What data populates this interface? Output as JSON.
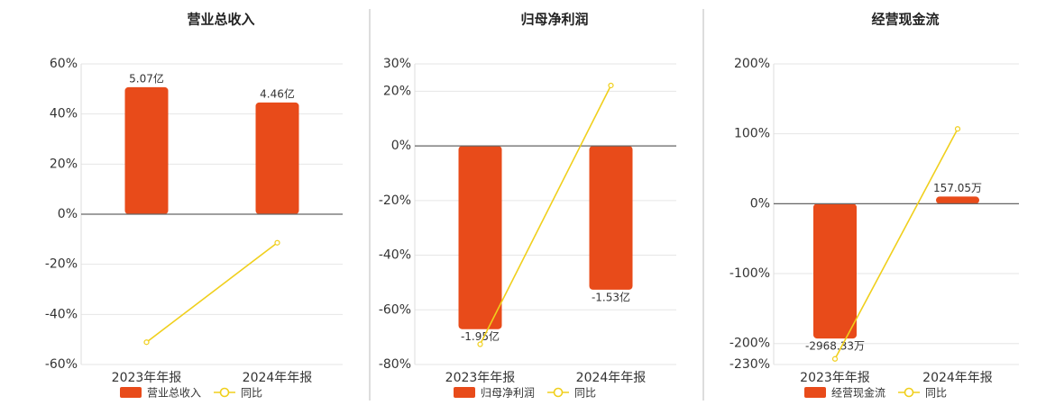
{
  "chart_data": [
    {
      "type": "combo",
      "title": "营业总收入",
      "categories": [
        "2023年年报",
        "2024年年报"
      ],
      "series": [
        {
          "name": "营业总收入",
          "type": "bar",
          "axis": "y2",
          "color": "#e84b1a",
          "values": [
            5.07,
            4.46
          ],
          "value_labels": [
            "5.07亿",
            "4.46亿"
          ]
        },
        {
          "name": "同比",
          "type": "line",
          "color": "#f0cf1c",
          "values": [
            -51.1,
            -11.4
          ]
        }
      ],
      "ylim": [
        -60,
        60
      ],
      "yticks": [
        {
          "value": 60,
          "label": "60%"
        },
        {
          "value": 40,
          "label": "40%"
        },
        {
          "value": 20,
          "label": "20%"
        },
        {
          "value": 0,
          "label": "0%"
        },
        {
          "value": -20,
          "label": "-20%"
        },
        {
          "value": -40,
          "label": "-40%"
        },
        {
          "value": -60,
          "label": "-60%"
        }
      ],
      "y2lim": [
        -6,
        6
      ],
      "grid": true
    },
    {
      "type": "combo",
      "title": "归母净利润",
      "categories": [
        "2023年年报",
        "2024年年报"
      ],
      "series": [
        {
          "name": "归母净利润",
          "type": "bar",
          "axis": "y2",
          "color": "#e84b1a",
          "values": [
            -1.95,
            -1.53
          ],
          "value_labels": [
            "-1.95亿",
            "-1.53亿"
          ]
        },
        {
          "name": "同比",
          "type": "line",
          "color": "#f0cf1c",
          "values": [
            -72.6,
            22.1
          ]
        }
      ],
      "ylim": [
        -80,
        30
      ],
      "yticks": [
        {
          "value": 30,
          "label": "30%"
        },
        {
          "value": 20,
          "label": "20%"
        },
        {
          "value": 0,
          "label": "0%"
        },
        {
          "value": -20,
          "label": "-20%"
        },
        {
          "value": -40,
          "label": "-40%"
        },
        {
          "value": -60,
          "label": "-60%"
        },
        {
          "value": -80,
          "label": "-80%"
        }
      ],
      "y2lim": [
        -2.326,
        0.872
      ],
      "grid": true
    },
    {
      "type": "combo",
      "title": "经营现金流",
      "categories": [
        "2023年年报",
        "2024年年报"
      ],
      "series": [
        {
          "name": "经营现金流",
          "type": "bar",
          "axis": "y2",
          "color": "#e84b1a",
          "values": [
            -2968.33,
            157.05
          ],
          "value_labels": [
            "-2968.33万",
            "157.05万"
          ]
        },
        {
          "name": "同比",
          "type": "line",
          "color": "#f0cf1c",
          "values": [
            -222,
            107
          ]
        }
      ],
      "ylim": [
        -230,
        200
      ],
      "yticks": [
        {
          "value": 200,
          "label": "200%"
        },
        {
          "value": 100,
          "label": "100%"
        },
        {
          "value": 0,
          "label": "0%"
        },
        {
          "value": -100,
          "label": "-100%"
        },
        {
          "value": -200,
          "label": "-200%"
        },
        {
          "value": -230,
          "label": "-230%"
        }
      ],
      "y2lim": [
        -3542,
        3080
      ],
      "grid": true
    }
  ]
}
